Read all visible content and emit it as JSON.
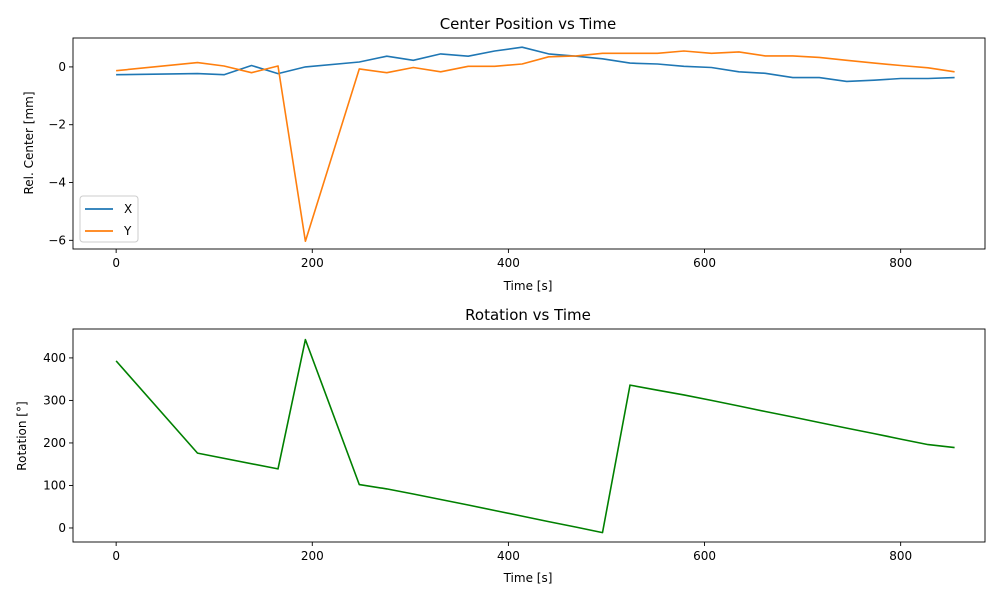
{
  "chart_data": [
    {
      "type": "line",
      "title": "Center Position vs Time",
      "xlabel": "Time [s]",
      "ylabel": "Rel. Center [mm]",
      "xlim": [
        -44,
        886
      ],
      "ylim": [
        -6.3,
        1.0
      ],
      "xticks": [
        0,
        200,
        400,
        600,
        800
      ],
      "yticks": [
        -6,
        -4,
        -2,
        0
      ],
      "ytick_labels": [
        "−6",
        "−4",
        "−2",
        "0"
      ],
      "grid": false,
      "legend": "lower-left",
      "series": [
        {
          "name": "X",
          "color": "#1f77b4",
          "x": [
            0,
            83,
            110,
            138,
            165,
            193,
            248,
            276,
            303,
            331,
            359,
            386,
            414,
            441,
            469,
            496,
            524,
            552,
            579,
            607,
            635,
            662,
            690,
            717,
            745,
            773,
            800,
            828,
            855
          ],
          "y": [
            -0.27,
            -0.23,
            -0.27,
            0.05,
            -0.23,
            0.0,
            0.17,
            0.37,
            0.23,
            0.45,
            0.37,
            0.55,
            0.68,
            0.45,
            0.37,
            0.28,
            0.13,
            0.1,
            0.02,
            -0.02,
            -0.17,
            -0.22,
            -0.37,
            -0.37,
            -0.5,
            -0.46,
            -0.4,
            -0.4,
            -0.37
          ]
        },
        {
          "name": "Y",
          "color": "#ff7f0e",
          "x": [
            0,
            83,
            110,
            138,
            165,
            193,
            248,
            276,
            303,
            331,
            359,
            386,
            414,
            441,
            469,
            496,
            524,
            552,
            579,
            607,
            635,
            662,
            690,
            717,
            745,
            773,
            800,
            828,
            855
          ],
          "y": [
            -0.13,
            0.15,
            0.03,
            -0.2,
            0.03,
            -6.03,
            -0.07,
            -0.2,
            -0.02,
            -0.17,
            0.02,
            0.02,
            0.1,
            0.35,
            0.38,
            0.47,
            0.47,
            0.47,
            0.55,
            0.47,
            0.52,
            0.38,
            0.38,
            0.33,
            0.23,
            0.13,
            0.05,
            -0.03,
            -0.17
          ]
        }
      ]
    },
    {
      "type": "line",
      "title": "Rotation vs Time",
      "xlabel": "Time [s]",
      "ylabel": "Rotation [°]",
      "xlim": [
        -44,
        886
      ],
      "ylim": [
        -33,
        468
      ],
      "xticks": [
        0,
        200,
        400,
        600,
        800
      ],
      "yticks": [
        0,
        100,
        200,
        300,
        400
      ],
      "ytick_labels": [
        "0",
        "100",
        "200",
        "300",
        "400"
      ],
      "grid": false,
      "series": [
        {
          "color": "#008000",
          "x": [
            0,
            83,
            165,
            193,
            248,
            276,
            303,
            331,
            359,
            386,
            414,
            441,
            469,
            496,
            524,
            552,
            579,
            607,
            635,
            662,
            690,
            717,
            745,
            773,
            800,
            828,
            855
          ],
          "y": [
            393,
            176,
            139,
            443,
            102,
            92,
            80,
            67,
            54,
            41,
            28,
            15,
            2,
            -11,
            336,
            324,
            313,
            300,
            287,
            274,
            261,
            248,
            235,
            222,
            209,
            196,
            189
          ]
        }
      ]
    }
  ]
}
